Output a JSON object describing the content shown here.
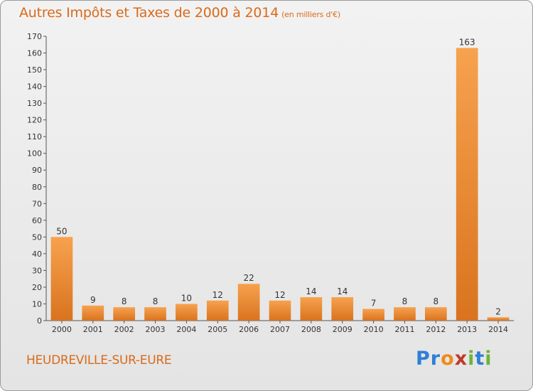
{
  "header": {
    "title": "Autres Impôts et Taxes de 2000 à 2014",
    "subtitle": "(en milliers d'€)"
  },
  "footer": {
    "commune": "HEUDREVILLE-SUR-EURE",
    "logo_letters": [
      "P",
      "r",
      "o",
      "x",
      "i",
      "t",
      "i"
    ],
    "logo_colors": [
      "#2f7fd6",
      "#2f7fd6",
      "#f08a1c",
      "#c0392b",
      "#6fb33a",
      "#2f7fd6",
      "#6fb33a"
    ]
  },
  "colors": {
    "bar_light": "#f7a24e",
    "bar_dark": "#d9731f",
    "axis": "#555555",
    "grid": "#bbbbbb"
  },
  "chart_data": {
    "type": "bar",
    "categories": [
      "2000",
      "2001",
      "2002",
      "2003",
      "2004",
      "2005",
      "2006",
      "2007",
      "2008",
      "2009",
      "2010",
      "2011",
      "2012",
      "2013",
      "2014"
    ],
    "values": [
      50,
      9,
      8,
      8,
      10,
      12,
      22,
      12,
      14,
      14,
      7,
      8,
      8,
      163,
      2
    ],
    "value_labels": [
      "50",
      "9",
      "8",
      "8",
      "10",
      "12",
      "22",
      "12",
      "14",
      "14",
      "7",
      "8",
      "8",
      "163",
      "2"
    ],
    "yticks": [
      0,
      10,
      20,
      30,
      40,
      50,
      60,
      70,
      80,
      90,
      100,
      110,
      120,
      130,
      140,
      150,
      160,
      170
    ],
    "ytick_labels": [
      "0",
      "10",
      "20",
      "30",
      "40",
      "50",
      "60",
      "70",
      "80",
      "90",
      "100",
      "110",
      "120",
      "130",
      "140",
      "150",
      "160",
      "170"
    ],
    "ylim": [
      0,
      170
    ],
    "grid": false
  }
}
